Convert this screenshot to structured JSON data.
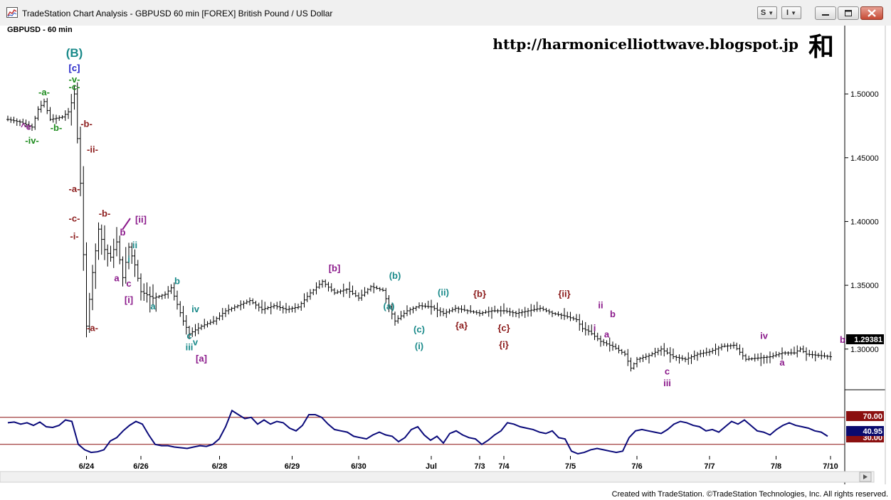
{
  "window": {
    "title": "TradeStation Chart Analysis - GBPUSD 60 min [FOREX] British Pound / US Dollar",
    "btn_s": "S",
    "btn_i": "I",
    "icons": [
      "chart-app-icon",
      "minimize-icon",
      "maximize-icon",
      "close-icon"
    ]
  },
  "chart_header": {
    "symbol": "GBPUSD - 60 min",
    "url": "http://harmonicelliottwave.blogspot.jp",
    "kanji": "和"
  },
  "footer": {
    "text": "Created with TradeStation. ©TradeStation Technologies, Inc. All rights reserved."
  },
  "chart_data": {
    "type": "ohlc",
    "title": "GBPUSD - 60 min",
    "ylim": [
      1.272,
      1.548
    ],
    "yticks": [
      "1.50000",
      "1.45000",
      "1.40000",
      "1.35000",
      "1.30000"
    ],
    "ytick_values": [
      1.5,
      1.45,
      1.4,
      1.35,
      1.3
    ],
    "last_price": "1.29381",
    "x_labels": [
      "6/24",
      "6/26",
      "6/28",
      "6/29",
      "6/30",
      "Jul",
      "7/3",
      "7/4",
      "7/5",
      "7/6",
      "7/7",
      "7/8",
      "7/10"
    ],
    "x_label_index": [
      13,
      22,
      35,
      47,
      58,
      70,
      78,
      82,
      93,
      104,
      116,
      127,
      136
    ],
    "path": [
      [
        0,
        1.48
      ],
      [
        2,
        1.478
      ],
      [
        4,
        1.474
      ],
      [
        5,
        1.488
      ],
      [
        6,
        1.494
      ],
      [
        7,
        1.48
      ],
      [
        9,
        1.482
      ],
      [
        10,
        1.486
      ],
      [
        11,
        1.5
      ],
      [
        12,
        1.43
      ],
      [
        13,
        1.318
      ],
      [
        14,
        1.36
      ],
      [
        15,
        1.394
      ],
      [
        16,
        1.378
      ],
      [
        17,
        1.372
      ],
      [
        18,
        1.384
      ],
      [
        19,
        1.356
      ],
      [
        20,
        1.38
      ],
      [
        21,
        1.366
      ],
      [
        22,
        1.345
      ],
      [
        24,
        1.34
      ],
      [
        26,
        1.343
      ],
      [
        27,
        1.348
      ],
      [
        29,
        1.322
      ],
      [
        30,
        1.312
      ],
      [
        32,
        1.318
      ],
      [
        34,
        1.322
      ],
      [
        36,
        1.33
      ],
      [
        38,
        1.334
      ],
      [
        40,
        1.338
      ],
      [
        42,
        1.331
      ],
      [
        44,
        1.334
      ],
      [
        46,
        1.331
      ],
      [
        48,
        1.333
      ],
      [
        50,
        1.344
      ],
      [
        52,
        1.353
      ],
      [
        54,
        1.344
      ],
      [
        56,
        1.347
      ],
      [
        58,
        1.34
      ],
      [
        60,
        1.349
      ],
      [
        62,
        1.346
      ],
      [
        63,
        1.333
      ],
      [
        64,
        1.322
      ],
      [
        66,
        1.33
      ],
      [
        68,
        1.334
      ],
      [
        70,
        1.333
      ],
      [
        72,
        1.328
      ],
      [
        74,
        1.332
      ],
      [
        76,
        1.33
      ],
      [
        78,
        1.328
      ],
      [
        80,
        1.33
      ],
      [
        82,
        1.33
      ],
      [
        84,
        1.328
      ],
      [
        86,
        1.33
      ],
      [
        88,
        1.332
      ],
      [
        90,
        1.328
      ],
      [
        92,
        1.326
      ],
      [
        94,
        1.323
      ],
      [
        95,
        1.316
      ],
      [
        96,
        1.314
      ],
      [
        98,
        1.306
      ],
      [
        100,
        1.302
      ],
      [
        102,
        1.296
      ],
      [
        103,
        1.285
      ],
      [
        104,
        1.292
      ],
      [
        106,
        1.295
      ],
      [
        108,
        1.3
      ],
      [
        110,
        1.294
      ],
      [
        112,
        1.292
      ],
      [
        114,
        1.296
      ],
      [
        116,
        1.298
      ],
      [
        118,
        1.302
      ],
      [
        120,
        1.303
      ],
      [
        122,
        1.292
      ],
      [
        124,
        1.293
      ],
      [
        126,
        1.294
      ],
      [
        128,
        1.297
      ],
      [
        130,
        1.297
      ],
      [
        131,
        1.3
      ],
      [
        132,
        1.296
      ],
      [
        134,
        1.295
      ],
      [
        136,
        1.294
      ]
    ],
    "wave_labels": [
      {
        "text": "(B)",
        "i": 11,
        "y": 1.529,
        "color": "#1a8a8a"
      },
      {
        "text": "[c]",
        "i": 11,
        "y": 1.518,
        "color": "#2323c8"
      },
      {
        "text": "-v-",
        "i": 11,
        "y": 1.509,
        "color": "#1e8c1e"
      },
      {
        "text": "-c-",
        "i": 11,
        "y": 1.503,
        "color": "#1e8c1e"
      },
      {
        "text": "-a-",
        "i": 6,
        "y": 1.499,
        "color": "#1e8c1e"
      },
      {
        "text": "-b-",
        "i": 8,
        "y": 1.471,
        "color": "#1e8c1e"
      },
      {
        "text": "^e",
        "i": 3,
        "y": 1.472,
        "color": "#8b1a8b"
      },
      {
        "text": "-iv-",
        "i": 4,
        "y": 1.461,
        "color": "#1e8c1e"
      },
      {
        "text": "-b-",
        "i": 13,
        "y": 1.474,
        "color": "#8b1a1a"
      },
      {
        "text": "-ii-",
        "i": 14,
        "y": 1.454,
        "color": "#8b1a1a"
      },
      {
        "text": "-a-",
        "i": 11,
        "y": 1.423,
        "color": "#8b1a1a"
      },
      {
        "text": "-c-",
        "i": 11,
        "y": 1.4,
        "color": "#8b1a1a"
      },
      {
        "text": "-i-",
        "i": 11,
        "y": 1.386,
        "color": "#8b1a1a"
      },
      {
        "text": "-b-",
        "i": 16,
        "y": 1.404,
        "color": "#8b1a1a"
      },
      {
        "text": "[ii]",
        "i": 22,
        "y": 1.399,
        "color": "#8b1a8b"
      },
      {
        "text": "b",
        "i": 19,
        "y": 1.389,
        "color": "#8b1a8b"
      },
      {
        "text": "ii",
        "i": 21,
        "y": 1.379,
        "color": "#1a8a8a"
      },
      {
        "text": "i",
        "i": 20,
        "y": 1.368,
        "color": "#1a8a8a"
      },
      {
        "text": "a",
        "i": 18,
        "y": 1.353,
        "color": "#8b1a8b"
      },
      {
        "text": "c",
        "i": 20,
        "y": 1.349,
        "color": "#8b1a8b"
      },
      {
        "text": "[i]",
        "i": 20,
        "y": 1.336,
        "color": "#8b1a8b"
      },
      {
        "text": "-a-",
        "i": 14,
        "y": 1.314,
        "color": "#8b1a1a"
      },
      {
        "text": "b",
        "i": 28,
        "y": 1.351,
        "color": "#1a8a8a"
      },
      {
        "text": "a",
        "i": 24,
        "y": 1.331,
        "color": "#1a8a8a"
      },
      {
        "text": "iv",
        "i": 31,
        "y": 1.329,
        "color": "#1a8a8a"
      },
      {
        "text": "c",
        "i": 30,
        "y": 1.308,
        "color": "#1a8a8a"
      },
      {
        "text": "v",
        "i": 31,
        "y": 1.303,
        "color": "#1a8a8a"
      },
      {
        "text": "iii",
        "i": 30,
        "y": 1.299,
        "color": "#1a8a8a"
      },
      {
        "text": "[a]",
        "i": 32,
        "y": 1.29,
        "color": "#8b1a8b"
      },
      {
        "text": "[b]",
        "i": 54,
        "y": 1.361,
        "color": "#8b1a8b"
      },
      {
        "text": "(b)",
        "i": 64,
        "y": 1.355,
        "color": "#1a8a8a"
      },
      {
        "text": "(a)",
        "i": 63,
        "y": 1.331,
        "color": "#1a8a8a"
      },
      {
        "text": "(c)",
        "i": 68,
        "y": 1.313,
        "color": "#1a8a8a"
      },
      {
        "text": "(i)",
        "i": 68,
        "y": 1.3,
        "color": "#1a8a8a"
      },
      {
        "text": "(ii)",
        "i": 72,
        "y": 1.342,
        "color": "#1a8a8a"
      },
      {
        "text": "{b}",
        "i": 78,
        "y": 1.341,
        "color": "#8b1a1a"
      },
      {
        "text": "{a}",
        "i": 75,
        "y": 1.316,
        "color": "#8b1a1a"
      },
      {
        "text": "{c}",
        "i": 82,
        "y": 1.314,
        "color": "#8b1a1a"
      },
      {
        "text": "{i}",
        "i": 82,
        "y": 1.301,
        "color": "#8b1a1a"
      },
      {
        "text": "{ii}",
        "i": 92,
        "y": 1.341,
        "color": "#8b1a1a"
      },
      {
        "text": "ii",
        "i": 98,
        "y": 1.332,
        "color": "#8b1a8b"
      },
      {
        "text": "b",
        "i": 100,
        "y": 1.325,
        "color": "#8b1a8b"
      },
      {
        "text": "i",
        "i": 97,
        "y": 1.314,
        "color": "#8b1a8b"
      },
      {
        "text": "a",
        "i": 99,
        "y": 1.309,
        "color": "#8b1a8b"
      },
      {
        "text": "c",
        "i": 109,
        "y": 1.28,
        "color": "#8b1a8b"
      },
      {
        "text": "iii",
        "i": 109,
        "y": 1.271,
        "color": "#8b1a8b"
      },
      {
        "text": "iv",
        "i": 125,
        "y": 1.308,
        "color": "#8b1a8b"
      },
      {
        "text": "a",
        "i": 128,
        "y": 1.287,
        "color": "#8b1a8b"
      },
      {
        "text": "b",
        "i": 138,
        "y": 1.305,
        "color": "#8b1a8b"
      }
    ],
    "rsi": {
      "ylim": [
        15,
        95
      ],
      "levels": [
        70,
        30
      ],
      "level_labels": [
        "70.00",
        "30.00"
      ],
      "last_value": "40.95",
      "values": [
        62,
        63,
        60,
        62,
        58,
        63,
        56,
        55,
        58,
        66,
        64,
        30,
        22,
        18,
        19,
        22,
        35,
        40,
        50,
        58,
        64,
        60,
        44,
        30,
        28,
        28,
        26,
        25,
        24,
        26,
        28,
        27,
        30,
        38,
        56,
        80,
        74,
        68,
        70,
        60,
        66,
        60,
        64,
        62,
        54,
        50,
        58,
        74,
        74,
        70,
        60,
        52,
        50,
        48,
        42,
        40,
        38,
        44,
        48,
        44,
        42,
        34,
        40,
        52,
        56,
        44,
        36,
        42,
        32,
        46,
        50,
        44,
        40,
        38,
        30,
        36,
        44,
        50,
        62,
        60,
        56,
        54,
        52,
        48,
        46,
        50,
        40,
        38,
        20,
        16,
        18,
        22,
        24,
        22,
        20,
        18,
        20,
        40,
        50,
        52,
        50,
        48,
        46,
        52,
        60,
        64,
        62,
        58,
        56,
        50,
        52,
        48,
        56,
        64,
        60,
        66,
        58,
        50,
        48,
        44,
        52,
        58,
        62,
        58,
        56,
        54,
        50,
        48,
        42
      ]
    }
  }
}
